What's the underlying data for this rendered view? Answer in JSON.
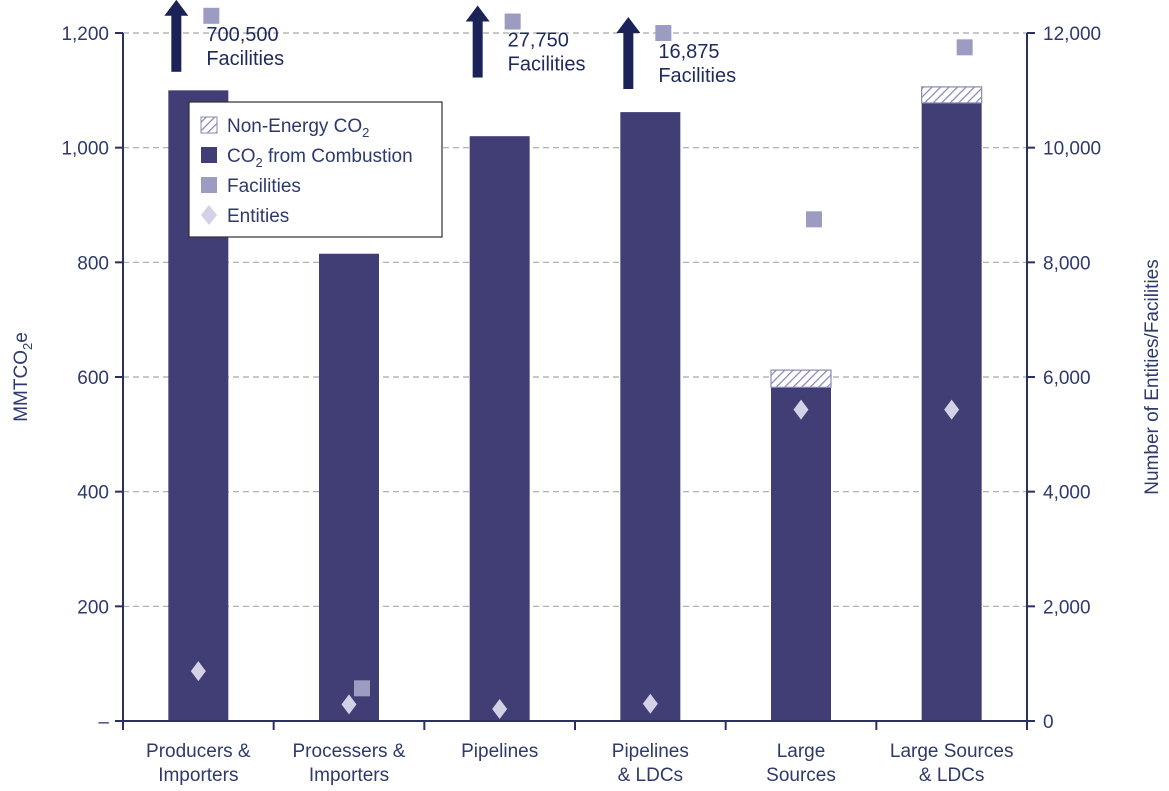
{
  "chart_data": {
    "type": "bar",
    "categories": [
      [
        "Producers &",
        "Importers"
      ],
      [
        "Processers &",
        "Importers"
      ],
      [
        "Pipelines"
      ],
      [
        "Pipelines",
        "& LDCs"
      ],
      [
        "Large",
        "Sources"
      ],
      [
        "Large Sources",
        "& LDCs"
      ]
    ],
    "series": [
      {
        "name": "CO₂ from Combustion",
        "kind": "stacked-bar",
        "axis": "left",
        "values": [
          1100,
          815,
          1020,
          1062,
          582,
          1078
        ]
      },
      {
        "name": "Non-Energy CO₂",
        "kind": "stacked-bar",
        "axis": "left",
        "values": [
          0,
          0,
          0,
          0,
          30,
          28
        ]
      },
      {
        "name": "Facilities",
        "kind": "square-marker",
        "axis": "right",
        "values": [
          12300,
          570,
          12200,
          12000,
          8750,
          11750
        ]
      },
      {
        "name": "Entities",
        "kind": "diamond-marker",
        "axis": "right",
        "values": [
          870,
          290,
          210,
          300,
          5430,
          5430
        ]
      }
    ],
    "ylabel": "MMTCO2e",
    "ylabel_parts": {
      "main": "MMTCO",
      "sub": "2",
      "tail": "e"
    },
    "y2label": "Number of Entities/Facilities",
    "ylim": [
      0,
      1200
    ],
    "y2lim": [
      0,
      12000
    ],
    "yticks": [
      "–",
      "200",
      "400",
      "600",
      "800",
      "1,000",
      "1,200"
    ],
    "y2ticks": [
      "0",
      "2,000",
      "4,000",
      "6,000",
      "8,000",
      "10,000",
      "12,000"
    ],
    "grid": true,
    "legend_placement": "top-left",
    "legend": [
      {
        "main": "Non-Energy CO",
        "sub": "2",
        "tail": "",
        "swatch": "hatch"
      },
      {
        "main": "CO",
        "sub": "2",
        "tail": " from Combustion",
        "swatch": "bar"
      },
      {
        "main": "Facilities",
        "sub": "",
        "tail": "",
        "swatch": "square"
      },
      {
        "main": "Entities",
        "sub": "",
        "tail": "",
        "swatch": "diamond"
      }
    ],
    "annotations": [
      {
        "category": 0,
        "lines": [
          "700,500",
          "Facilities"
        ]
      },
      {
        "category": 2,
        "lines": [
          "27,750",
          "Facilities"
        ]
      },
      {
        "category": 3,
        "lines": [
          "16,875",
          "Facilities"
        ]
      }
    ],
    "colors": {
      "bar": "#403e74",
      "facility": "#9c9bc1",
      "entity": "#d2d1e6",
      "axis": "#2a3060",
      "grid": "#a8a8a8",
      "arrow": "#1a2258",
      "hatch": "#8a88b3"
    }
  }
}
